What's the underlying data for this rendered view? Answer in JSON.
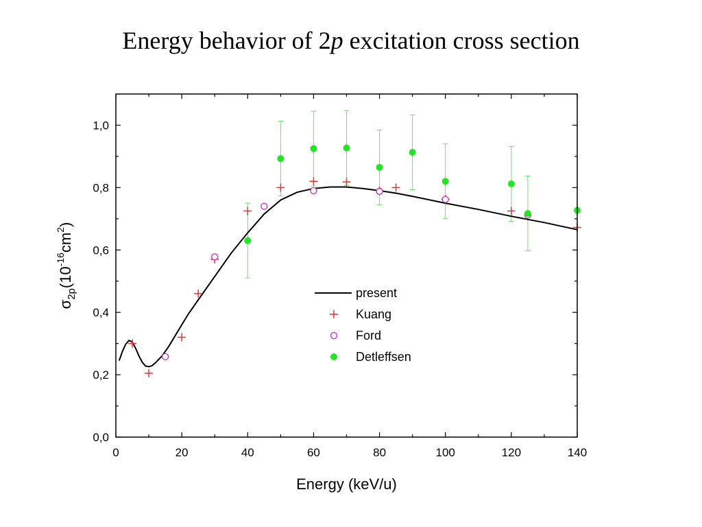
{
  "slide": {
    "title_part1": "Energy behavior of 2",
    "title_italic": "p",
    "title_part2": " excitation cross section"
  },
  "chart_data": {
    "type": "scatter",
    "title": "Energy behavior of 2p excitation cross section",
    "xlabel": "Energy (keV/u)",
    "ylabel": "σ2p(10-16cm2)",
    "ylabel_parts": {
      "sym": "σ",
      "sub": "2p",
      "base": "(10",
      "exp1": "-16",
      "mid": "cm",
      "exp2": "2",
      "close": ")"
    },
    "xlim": [
      0,
      140
    ],
    "ylim": [
      0,
      1.1
    ],
    "x_ticks": [
      0,
      20,
      40,
      60,
      80,
      100,
      120,
      140
    ],
    "x_tick_labels": [
      "0",
      "20",
      "40",
      "60",
      "80",
      "100",
      "120",
      "140"
    ],
    "y_ticks": [
      0.0,
      0.2,
      0.4,
      0.6,
      0.8,
      1.0
    ],
    "y_tick_labels": [
      "0,0",
      "0,2",
      "0,4",
      "0,6",
      "0,8",
      "1,0"
    ],
    "grid": false,
    "legend_position": "center",
    "colors": {
      "present": "#000000",
      "kuang": "#e8322d",
      "ford": "#d21fd2",
      "detleffsen": "#22e622",
      "detleffsen_err": "#6ee06e"
    },
    "series": [
      {
        "name": "present",
        "kind": "line",
        "x": [
          1,
          2,
          3,
          4,
          5,
          6,
          7,
          8,
          9,
          10,
          11,
          12,
          14,
          16,
          18,
          20,
          22,
          25,
          30,
          35,
          40,
          45,
          50,
          55,
          60,
          65,
          70,
          75,
          80,
          85,
          90,
          100,
          110,
          120,
          130,
          140
        ],
        "y": [
          0.245,
          0.275,
          0.298,
          0.31,
          0.305,
          0.285,
          0.26,
          0.24,
          0.228,
          0.226,
          0.229,
          0.238,
          0.26,
          0.29,
          0.325,
          0.36,
          0.395,
          0.44,
          0.515,
          0.59,
          0.655,
          0.715,
          0.76,
          0.785,
          0.797,
          0.802,
          0.802,
          0.797,
          0.79,
          0.782,
          0.772,
          0.75,
          0.73,
          0.708,
          0.688,
          0.665
        ]
      },
      {
        "name": "Kuang",
        "kind": "plus",
        "x": [
          5,
          10,
          20,
          25,
          30,
          40,
          50,
          60,
          70,
          80,
          85,
          100,
          120,
          140
        ],
        "y": [
          0.3,
          0.205,
          0.32,
          0.46,
          0.57,
          0.725,
          0.8,
          0.82,
          0.818,
          0.79,
          0.8,
          0.763,
          0.725,
          0.672
        ]
      },
      {
        "name": "Ford",
        "kind": "circle",
        "x": [
          15,
          30,
          45,
          60,
          80,
          100,
          125
        ],
        "y": [
          0.258,
          0.578,
          0.74,
          0.79,
          0.788,
          0.762,
          0.712
        ]
      },
      {
        "name": "Detleffsen",
        "kind": "dot",
        "x": [
          40,
          50,
          60,
          70,
          80,
          90,
          100,
          120,
          125,
          140
        ],
        "y": [
          0.63,
          0.893,
          0.925,
          0.927,
          0.865,
          0.913,
          0.82,
          0.812,
          0.717,
          0.727
        ],
        "err": [
          0.12,
          0.12,
          0.12,
          0.12,
          0.12,
          0.12,
          0.12,
          0.12,
          0.12,
          0.12
        ]
      }
    ]
  }
}
